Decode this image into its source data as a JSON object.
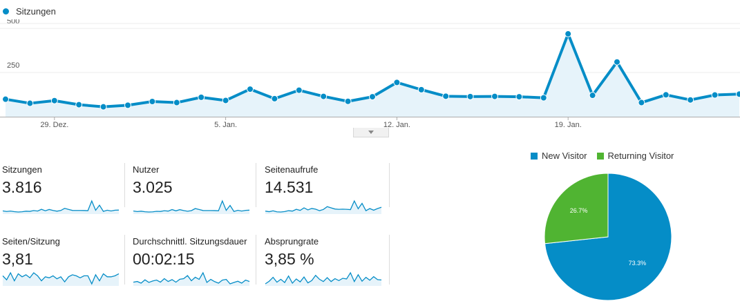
{
  "legend": {
    "label": "Sitzungen",
    "color": "#058dc7"
  },
  "chart_data": {
    "type": "area",
    "series": [
      {
        "name": "Sitzungen",
        "values": [
          99,
          76,
          91,
          68,
          56,
          65,
          86,
          80,
          110,
          92,
          156,
          102,
          150,
          115,
          87,
          113,
          194,
          153,
          116,
          114,
          115,
          113,
          107,
          469,
          121,
          310,
          80,
          124,
          95,
          123,
          128
        ]
      }
    ],
    "x_tick_labels": [
      "29. Dez.",
      "5. Jan.",
      "12. Jan.",
      "19. Jan."
    ],
    "x_tick_index": [
      2,
      9,
      16,
      23
    ],
    "y_tick_labels": [
      "500",
      "250"
    ],
    "y_ticks": [
      500,
      250
    ],
    "ylim": [
      0,
      550
    ],
    "line_color": "#058dc7",
    "fill_color": "#e6f3fa",
    "grid": true
  },
  "metrics": [
    {
      "label": "Sitzungen",
      "value": "3.816",
      "spark": [
        99,
        76,
        91,
        68,
        56,
        65,
        86,
        80,
        110,
        92,
        156,
        102,
        150,
        115,
        87,
        113,
        194,
        153,
        116,
        114,
        115,
        113,
        107,
        469,
        121,
        310,
        80,
        124,
        95,
        123,
        128
      ]
    },
    {
      "label": "Nutzer",
      "value": "3.025",
      "spark": [
        80,
        62,
        74,
        58,
        50,
        55,
        70,
        66,
        88,
        76,
        120,
        84,
        118,
        92,
        72,
        90,
        150,
        122,
        94,
        92,
        93,
        91,
        86,
        370,
        98,
        240,
        66,
        100,
        78,
        98,
        104
      ]
    },
    {
      "label": "Seitenaufrufe",
      "value": "14.531",
      "spark": [
        300,
        260,
        320,
        250,
        240,
        270,
        330,
        300,
        420,
        350,
        520,
        380,
        480,
        430,
        330,
        410,
        600,
        520,
        440,
        420,
        430,
        420,
        400,
        980,
        460,
        820,
        330,
        470,
        360,
        470,
        560
      ]
    },
    {
      "label": "Seiten/Sitzung",
      "value": "3,81",
      "spark": [
        3.9,
        3.5,
        4.2,
        3.4,
        4.1,
        3.8,
        4.0,
        3.7,
        4.2,
        3.9,
        3.4,
        3.8,
        3.7,
        3.9,
        3.6,
        3.8,
        3.3,
        3.8,
        4.0,
        3.9,
        3.7,
        3.9,
        3.9,
        3.1,
        4.0,
        3.4,
        4.1,
        3.8,
        3.8,
        3.9,
        4.1
      ]
    },
    {
      "label": "Durchschnittl. Sitzungsdauer",
      "value": "00:02:15",
      "spark": [
        120,
        126,
        112,
        140,
        118,
        130,
        138,
        120,
        150,
        126,
        142,
        120,
        145,
        150,
        176,
        132,
        162,
        144,
        200,
        118,
        144,
        125,
        112,
        138,
        144,
        106,
        118,
        128,
        112,
        138,
        126
      ]
    },
    {
      "label": "Absprungrate",
      "value": "3,85 %",
      "spark": [
        2.6,
        3.4,
        4.6,
        3.1,
        4.0,
        3.0,
        5.0,
        2.8,
        4.1,
        3.2,
        4.7,
        2.9,
        3.6,
        5.2,
        4.0,
        3.3,
        4.5,
        3.3,
        4.2,
        3.6,
        4.3,
        4.1,
        6.0,
        3.3,
        5.4,
        3.4,
        4.6,
        3.7,
        4.8,
        3.9,
        3.8
      ]
    }
  ],
  "pie": {
    "type": "pie",
    "legend": [
      {
        "label": "New Visitor",
        "color": "#058dc7"
      },
      {
        "label": "Returning Visitor",
        "color": "#50b432"
      }
    ],
    "slices": [
      {
        "label": "New Visitor",
        "value": 73.3,
        "text": "73.3%",
        "color": "#058dc7"
      },
      {
        "label": "Returning Visitor",
        "value": 26.7,
        "text": "26.7%",
        "color": "#50b432"
      }
    ]
  }
}
